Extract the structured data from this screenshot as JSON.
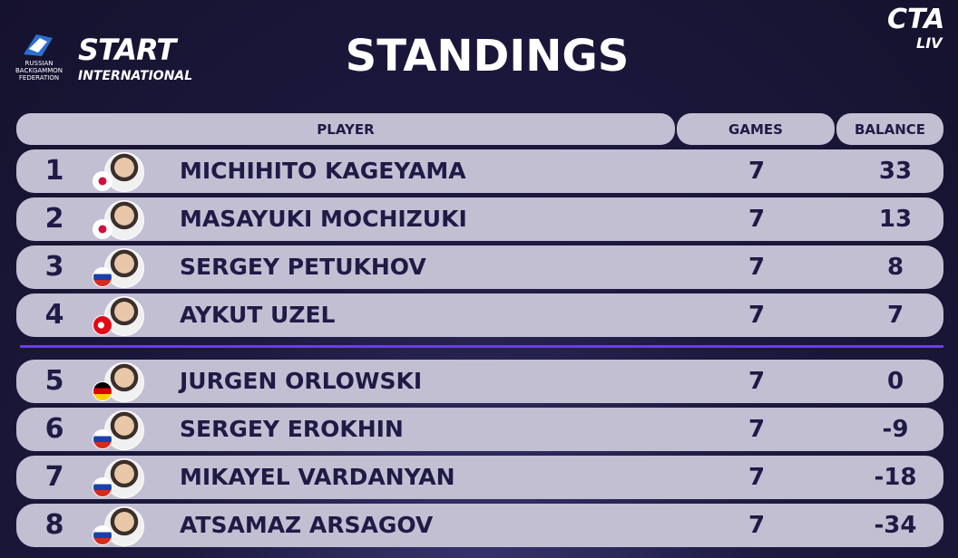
{
  "header": {
    "federation": "RUSSIAN BACKGAMMON FEDERATION",
    "brand": "START",
    "brand_sub": "INTERNATIONAL",
    "title": "STANDINGS",
    "live_brand": "CTA",
    "live_sub": "LIV"
  },
  "table": {
    "columns": [
      "PLAYER",
      "GAMES",
      "BALANCE"
    ],
    "rows": [
      [
        1,
        "MICHIHITO KAGEYAMA",
        7,
        33
      ],
      [
        2,
        "MASAYUKI MOCHIZUKI",
        7,
        13
      ],
      [
        3,
        "SERGEY PETUKHOV",
        7,
        8
      ],
      [
        4,
        "AYKUT UZEL",
        7,
        7
      ],
      [
        5,
        "JURGEN ORLOWSKI",
        7,
        0
      ],
      [
        6,
        "SERGEY EROKHIN",
        7,
        -9
      ],
      [
        7,
        "MIKAYEL VARDANYAN",
        7,
        -18
      ],
      [
        8,
        "ATSAMAZ ARSAGOV",
        7,
        -34
      ]
    ]
  }
}
